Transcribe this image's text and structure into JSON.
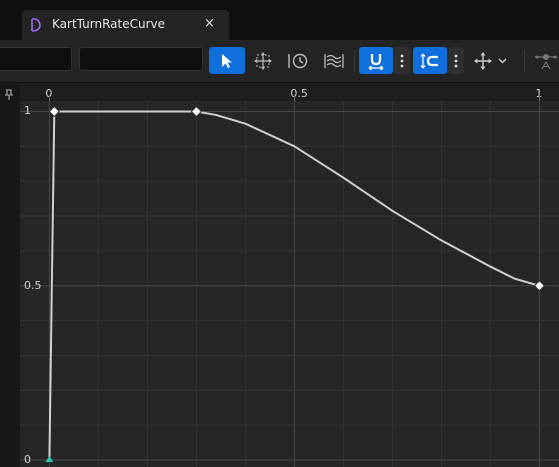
{
  "tab": {
    "title": "KartTurnRateCurve",
    "icon": "curve-asset-icon",
    "close_glyph": "×"
  },
  "toolbar": {
    "time_field": {
      "value": ""
    },
    "value_field": {
      "value": ""
    },
    "tools": [
      {
        "name": "select-tool",
        "icon": "cursor-arrow-icon",
        "active": true
      },
      {
        "name": "transform-tool",
        "icon": "transform-icon",
        "active": false
      },
      {
        "name": "retime-tool",
        "icon": "retime-icon",
        "active": false
      },
      {
        "name": "multi-scale-tool",
        "icon": "wave-stack-icon",
        "active": false
      }
    ],
    "snapping": [
      {
        "name": "time-snap-toggle",
        "icon": "magnet-time-icon",
        "active": true
      },
      {
        "name": "value-snap-toggle",
        "icon": "magnet-value-icon",
        "active": true
      }
    ],
    "framing_icon": "move-arrows-icon",
    "tangent_icon": "tangent-icon"
  },
  "axes": {
    "x_ticks": [
      {
        "value": 0,
        "label": "0"
      },
      {
        "value": 0.5,
        "label": "0.5"
      },
      {
        "value": 1,
        "label": "1"
      }
    ],
    "y_ticks": [
      {
        "value": 1,
        "label": "1"
      },
      {
        "value": 0.5,
        "label": "0.5"
      },
      {
        "value": 0,
        "label": "0"
      }
    ],
    "x_range": [
      -0.06,
      1.04
    ],
    "y_range": [
      -0.02,
      1.03
    ]
  },
  "colors": {
    "curve": "#cfcfcf",
    "key": "#ffffff",
    "selected_key": "#2dc3b0",
    "grid_major": "#474747",
    "grid_minor": "#343434"
  },
  "chart_data": {
    "type": "line",
    "x": [
      0,
      0.01,
      0.3,
      0.34,
      0.4,
      0.5,
      0.6,
      0.7,
      0.8,
      0.9,
      0.95,
      1.0
    ],
    "y": [
      0,
      1.0,
      1.0,
      0.99,
      0.965,
      0.9,
      0.81,
      0.715,
      0.63,
      0.555,
      0.52,
      0.5
    ],
    "keys": [
      {
        "x": 0,
        "y": 0,
        "selected": true
      },
      {
        "x": 0.01,
        "y": 1.0,
        "selected": false
      },
      {
        "x": 0.3,
        "y": 1.0,
        "selected": false
      },
      {
        "x": 1.0,
        "y": 0.5,
        "selected": false
      }
    ],
    "xlim": [
      -0.06,
      1.04
    ],
    "ylim": [
      -0.02,
      1.03
    ],
    "grid": true
  }
}
